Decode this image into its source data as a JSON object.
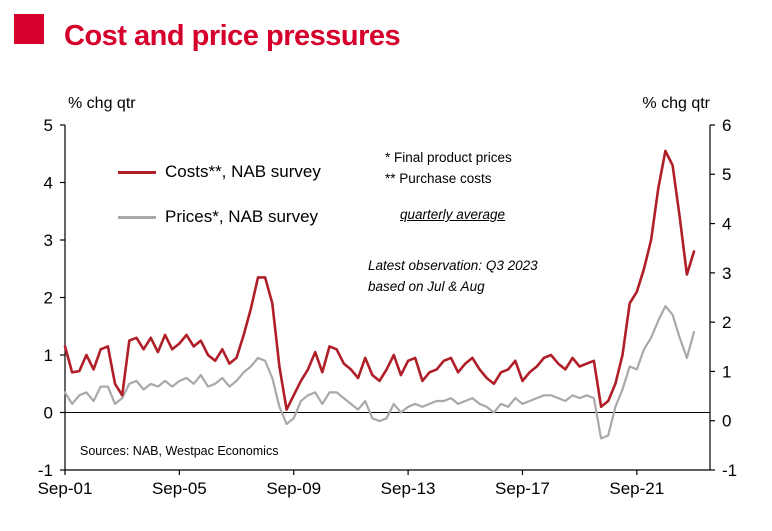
{
  "header": {
    "title": "Cost and price pressures"
  },
  "colors": {
    "brand_red": "#D5002B",
    "costs_line": "#B01E28",
    "prices_line": "#A9A9A9",
    "axis": "#000000"
  },
  "chart_data": {
    "type": "line",
    "title": "Cost and price pressures",
    "y_left_title": "% chg qtr",
    "y_right_title": "% chg qtr",
    "frequency": "quarterly",
    "x_start": "Sep-01",
    "x_end": "Q3-2023",
    "x_tick_labels": [
      "Sep-01",
      "Sep-05",
      "Sep-09",
      "Sep-13",
      "Sep-17",
      "Sep-21"
    ],
    "x_tick_indices": [
      0,
      16,
      32,
      48,
      64,
      80
    ],
    "y_left_ticks": [
      5,
      4,
      3,
      2,
      1,
      0,
      -1
    ],
    "y_left_range": [
      -1,
      5
    ],
    "y_right_ticks": [
      6,
      5,
      4,
      3,
      2,
      1,
      0,
      -1
    ],
    "y_right_range": [
      -1,
      6
    ],
    "grid": false,
    "legend_position": "top-left-inside",
    "series": [
      {
        "name": "Costs**, NAB survey",
        "color": "#B01E28",
        "width": 2.6,
        "axis": "left",
        "values": [
          1.15,
          0.7,
          0.72,
          1.0,
          0.75,
          1.1,
          1.15,
          0.5,
          0.3,
          1.25,
          1.3,
          1.1,
          1.3,
          1.05,
          1.35,
          1.1,
          1.2,
          1.35,
          1.15,
          1.25,
          1.0,
          0.9,
          1.1,
          0.85,
          0.95,
          1.35,
          1.8,
          2.35,
          2.35,
          1.9,
          0.8,
          0.05,
          0.3,
          0.55,
          0.75,
          1.05,
          0.7,
          1.15,
          1.1,
          0.85,
          0.75,
          0.6,
          0.95,
          0.65,
          0.55,
          0.75,
          1.0,
          0.65,
          0.9,
          0.95,
          0.55,
          0.7,
          0.75,
          0.9,
          0.95,
          0.7,
          0.85,
          0.95,
          0.75,
          0.6,
          0.5,
          0.7,
          0.75,
          0.9,
          0.55,
          0.7,
          0.8,
          0.95,
          1.0,
          0.85,
          0.75,
          0.95,
          0.8,
          0.85,
          0.9,
          0.1,
          0.2,
          0.5,
          1.0,
          1.9,
          2.1,
          2.5,
          3.0,
          3.9,
          4.55,
          4.3,
          3.4,
          2.4,
          2.8
        ]
      },
      {
        "name": "Prices*, NAB survey",
        "color": "#A9A9A9",
        "width": 2.2,
        "axis": "left",
        "values": [
          0.35,
          0.15,
          0.3,
          0.35,
          0.2,
          0.45,
          0.45,
          0.15,
          0.25,
          0.5,
          0.55,
          0.4,
          0.5,
          0.45,
          0.55,
          0.45,
          0.55,
          0.6,
          0.5,
          0.65,
          0.45,
          0.5,
          0.6,
          0.45,
          0.55,
          0.7,
          0.8,
          0.95,
          0.9,
          0.6,
          0.1,
          -0.2,
          -0.1,
          0.2,
          0.3,
          0.35,
          0.15,
          0.35,
          0.35,
          0.25,
          0.15,
          0.05,
          0.2,
          -0.1,
          -0.15,
          -0.1,
          0.15,
          0.0,
          0.1,
          0.15,
          0.1,
          0.15,
          0.2,
          0.2,
          0.25,
          0.15,
          0.2,
          0.25,
          0.15,
          0.1,
          0.0,
          0.15,
          0.1,
          0.25,
          0.15,
          0.2,
          0.25,
          0.3,
          0.3,
          0.25,
          0.2,
          0.3,
          0.25,
          0.3,
          0.25,
          -0.45,
          -0.4,
          0.1,
          0.4,
          0.8,
          0.75,
          1.1,
          1.3,
          1.6,
          1.85,
          1.7,
          1.3,
          0.95,
          1.4
        ]
      }
    ]
  },
  "annotations": {
    "footnote_1": "*  Final product prices",
    "footnote_2": "** Purchase costs",
    "average_note": "quarterly average",
    "latest_obs_1": "Latest observation: Q3 2023",
    "latest_obs_2": "based on Jul & Aug",
    "sources": "Sources: NAB, Westpac Economics"
  }
}
